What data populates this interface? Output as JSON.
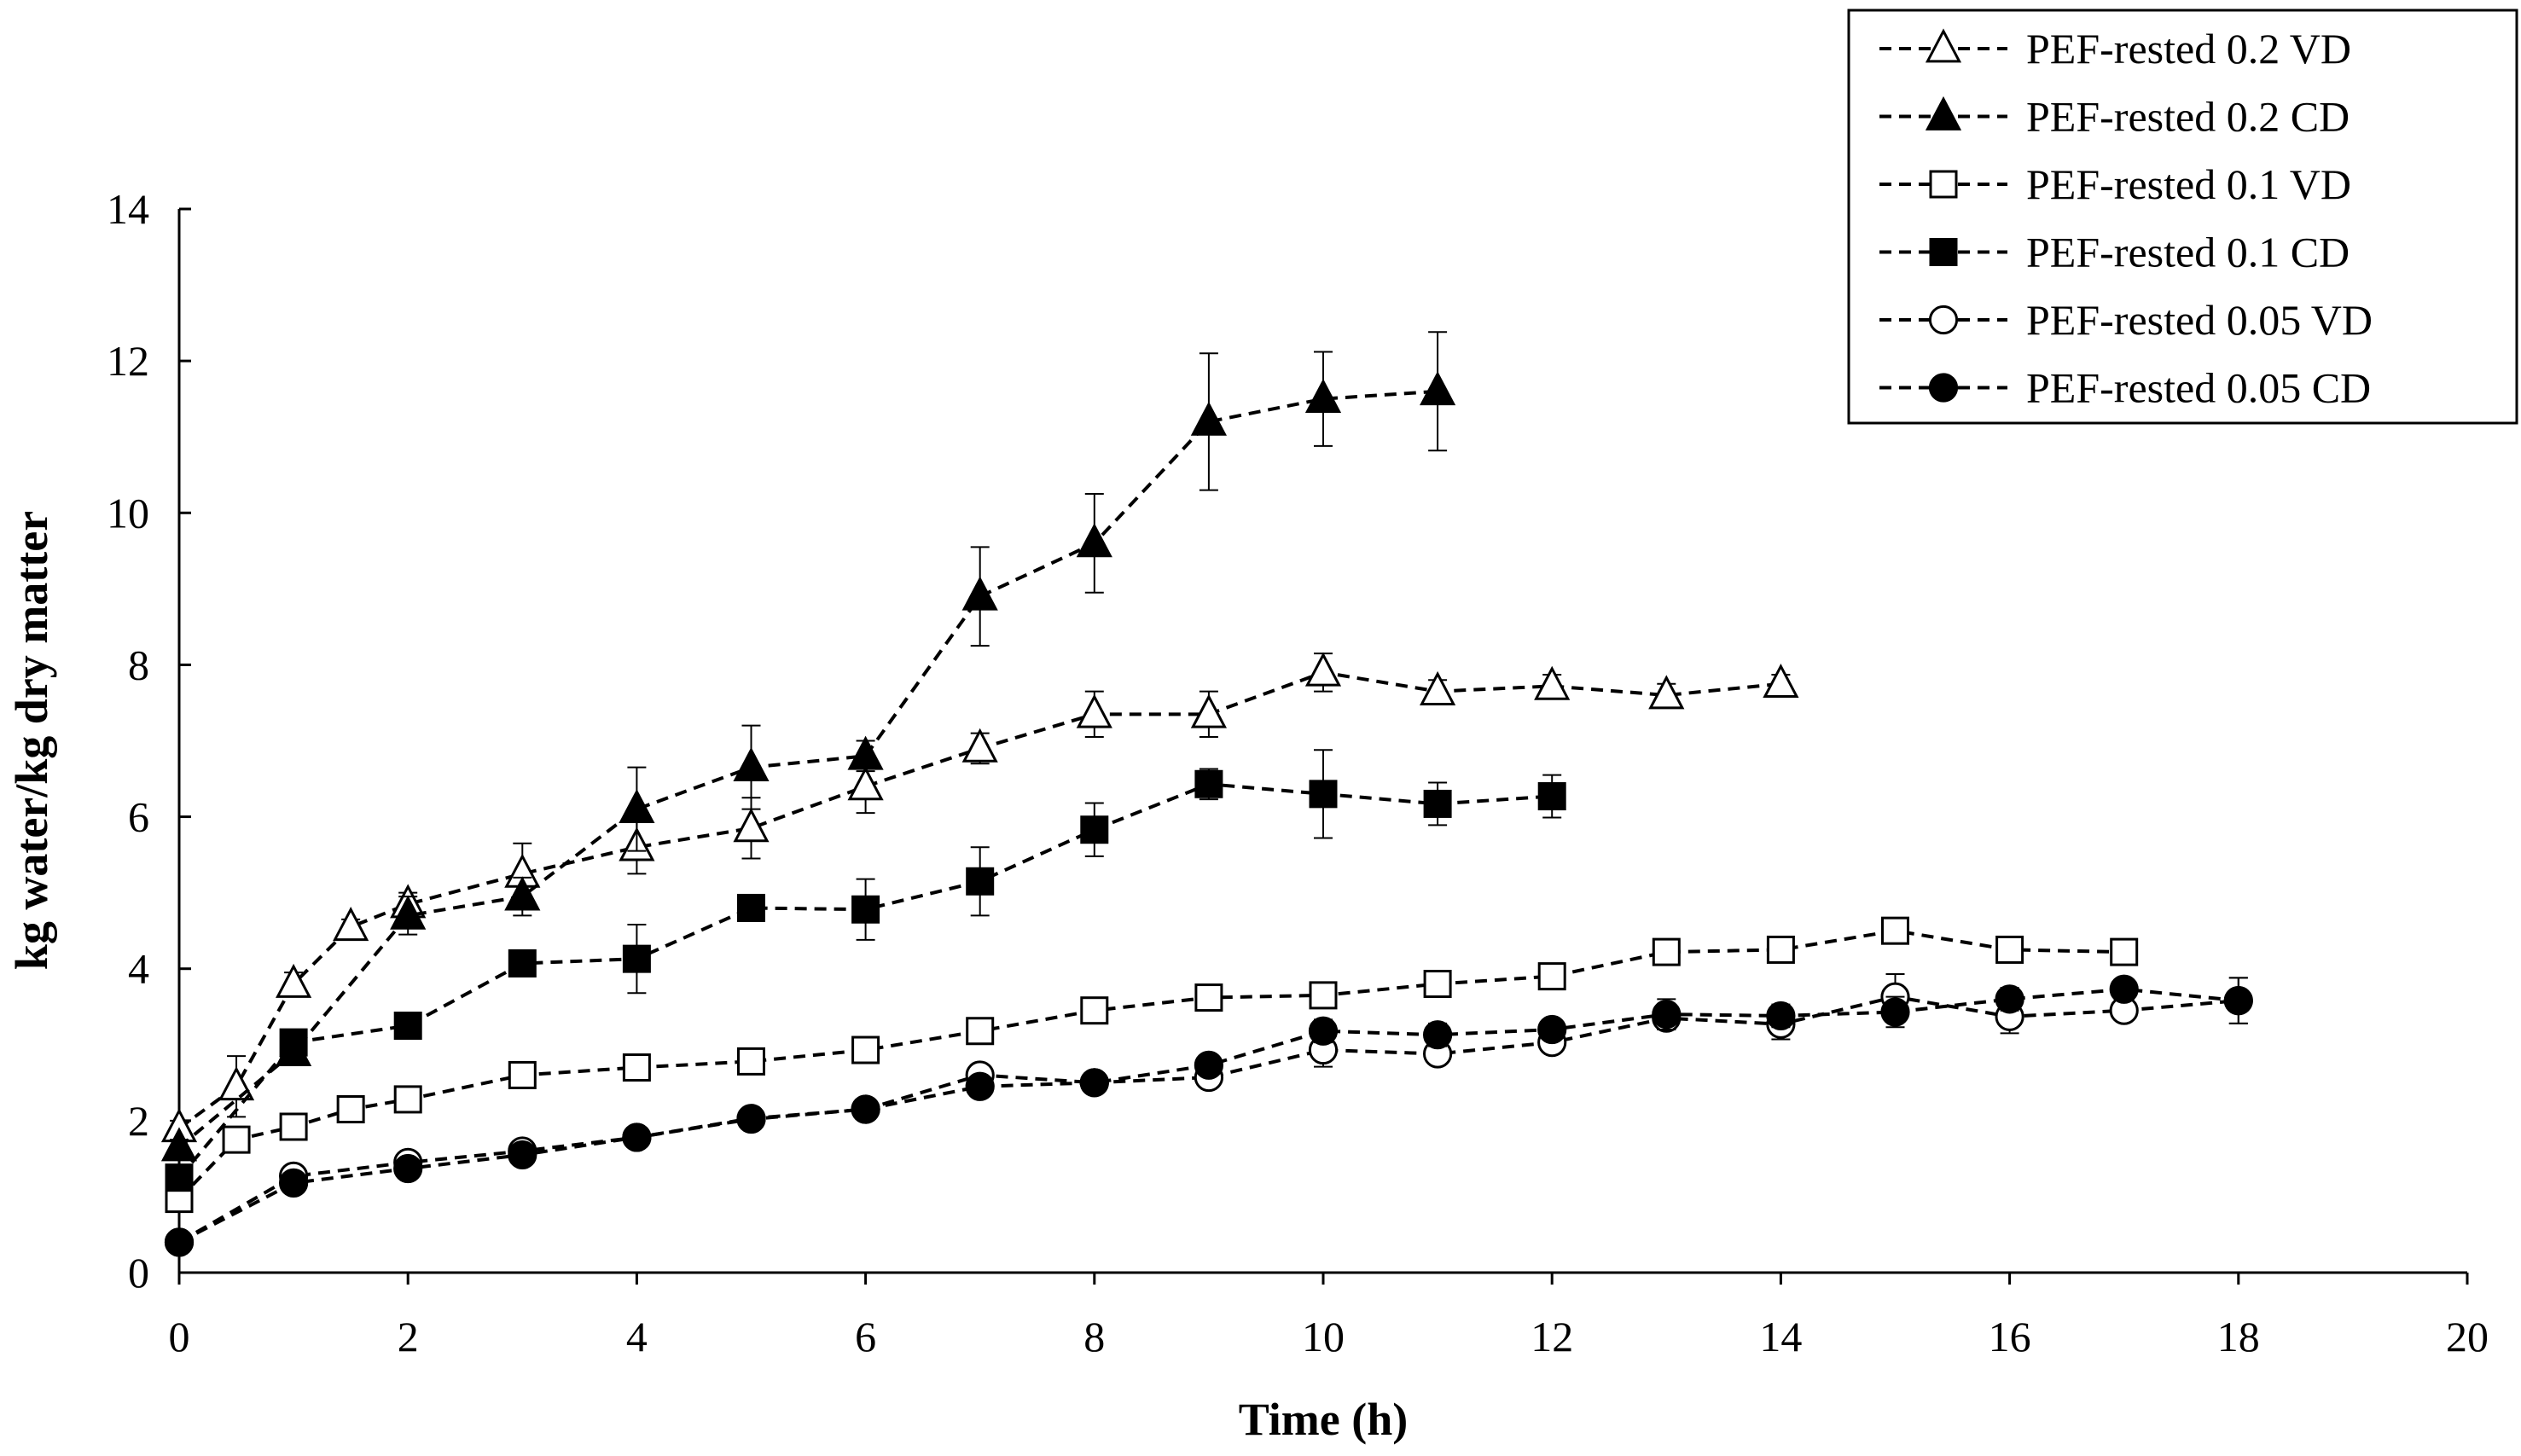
{
  "chart_data": {
    "type": "line",
    "title": "",
    "xlabel": "Time (h)",
    "ylabel": "kg water/kg dry matter",
    "xlim": [
      0,
      20
    ],
    "ylim": [
      0,
      14
    ],
    "xticks": [
      "0",
      "2",
      "4",
      "6",
      "8",
      "10",
      "12",
      "14",
      "16",
      "18",
      "20"
    ],
    "yticks": [
      "0",
      "2",
      "4",
      "6",
      "8",
      "10",
      "12",
      "14"
    ],
    "grid": false,
    "legend_position": "top-right",
    "series": [
      {
        "name": "PEF-rested 0.2 VD",
        "marker": "triangle",
        "filled": false,
        "x": [
          0,
          0.5,
          1,
          1.5,
          2,
          3,
          4,
          5,
          6,
          7,
          8,
          9,
          10,
          11,
          12,
          13,
          14
        ],
        "y": [
          1.9,
          2.45,
          3.8,
          4.55,
          4.85,
          5.25,
          5.6,
          5.85,
          6.4,
          6.9,
          7.35,
          7.35,
          7.9,
          7.65,
          7.72,
          7.6,
          7.75
        ],
        "err": [
          0.1,
          0.4,
          0.15,
          0.1,
          0.15,
          0.4,
          0.35,
          0.4,
          0.35,
          0.2,
          0.3,
          0.3,
          0.25,
          0.15,
          0.15,
          0.15,
          0.12
        ]
      },
      {
        "name": "PEF-rested 0.2 CD",
        "marker": "triangle",
        "filled": true,
        "x": [
          0,
          1,
          2,
          3,
          4,
          5,
          6,
          7,
          8,
          9,
          10,
          11
        ],
        "y": [
          1.65,
          2.9,
          4.7,
          4.95,
          6.1,
          6.65,
          6.8,
          8.9,
          9.6,
          11.2,
          11.5,
          11.6
        ],
        "err": [
          0.1,
          0.15,
          0.25,
          0.25,
          0.55,
          0.55,
          0.2,
          0.65,
          0.65,
          0.9,
          0.62,
          0.78
        ]
      },
      {
        "name": "PEF-rested 0.1 VD",
        "marker": "square",
        "filled": false,
        "x": [
          0,
          0.5,
          1,
          1.5,
          2,
          3,
          4,
          5,
          6,
          7,
          8,
          9,
          10,
          11,
          12,
          13,
          14,
          15,
          16,
          17
        ],
        "y": [
          0.97,
          1.75,
          1.92,
          2.15,
          2.28,
          2.6,
          2.7,
          2.78,
          2.93,
          3.18,
          3.45,
          3.62,
          3.65,
          3.8,
          3.9,
          4.22,
          4.25,
          4.5,
          4.25,
          4.22
        ],
        "err": [
          0.1,
          0.1,
          0.1,
          0.1,
          0.1,
          0.12,
          0.12,
          0.12,
          0.12,
          0.15,
          0.15,
          0.15,
          0.15,
          0.12,
          0.12,
          0.12,
          0.12,
          0.12,
          0.12,
          0.12
        ]
      },
      {
        "name": "PEF-rested 0.1 CD",
        "marker": "square",
        "filled": true,
        "x": [
          0,
          1,
          2,
          3,
          4,
          5,
          6,
          7,
          8,
          9,
          10,
          11,
          12
        ],
        "y": [
          1.25,
          3.03,
          3.25,
          4.07,
          4.13,
          4.8,
          4.78,
          5.15,
          5.83,
          6.43,
          6.3,
          6.17,
          6.27
        ],
        "err": [
          0.1,
          0.15,
          0.12,
          0.15,
          0.45,
          0.15,
          0.4,
          0.45,
          0.35,
          0.2,
          0.58,
          0.28,
          0.28
        ]
      },
      {
        "name": "PEF-rested 0.05 VD",
        "marker": "circle",
        "filled": false,
        "x": [
          0,
          1,
          2,
          3,
          4,
          5,
          6,
          7,
          8,
          9,
          10,
          11,
          12,
          13,
          14,
          15,
          16,
          17,
          18
        ],
        "y": [
          0.4,
          1.27,
          1.45,
          1.6,
          1.78,
          2.02,
          2.15,
          2.6,
          2.5,
          2.57,
          2.93,
          2.88,
          3.03,
          3.35,
          3.27,
          3.63,
          3.37,
          3.45,
          3.58
        ],
        "err": [
          0.05,
          0.08,
          0.08,
          0.08,
          0.08,
          0.1,
          0.1,
          0.1,
          0.1,
          0.1,
          0.22,
          0.12,
          0.12,
          0.15,
          0.2,
          0.3,
          0.22,
          0.1,
          0.3
        ]
      },
      {
        "name": "PEF-rested 0.05 CD",
        "marker": "circle",
        "filled": true,
        "x": [
          0,
          1,
          2,
          3,
          4,
          5,
          6,
          7,
          8,
          9,
          10,
          11,
          12,
          13,
          14,
          15,
          16,
          17,
          18
        ],
        "y": [
          0.4,
          1.18,
          1.37,
          1.55,
          1.78,
          2.03,
          2.15,
          2.45,
          2.5,
          2.73,
          3.18,
          3.13,
          3.2,
          3.4,
          3.38,
          3.43,
          3.6,
          3.73,
          3.58
        ],
        "err": [
          0.05,
          0.08,
          0.08,
          0.08,
          0.08,
          0.1,
          0.1,
          0.1,
          0.1,
          0.1,
          0.15,
          0.15,
          0.12,
          0.2,
          0.15,
          0.2,
          0.15,
          0.1,
          0.3
        ]
      }
    ]
  }
}
